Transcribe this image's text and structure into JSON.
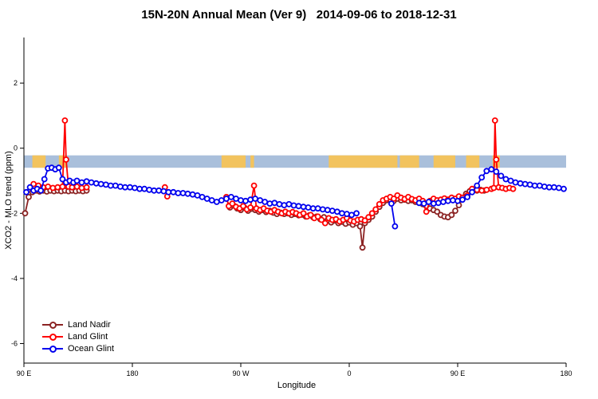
{
  "title": "15N-20N Annual Mean (Ver 9)   2014-09-06 to 2018-12-31",
  "chart_data": {
    "type": "line",
    "title": "15N-20N Annual Mean (Ver 9)   2014-09-06 to 2018-12-31",
    "xlabel": "Longitude",
    "ylabel": "XCO2 - MLO trend (ppm)",
    "grid": false,
    "legend_position": "bottom-left",
    "x_axis": {
      "range": [
        0,
        450
      ],
      "ticks": [
        0,
        90,
        180,
        270,
        360,
        450
      ],
      "labels": [
        "90 E",
        "180",
        "90 W",
        "0",
        "90 E",
        "180"
      ],
      "note": "x is degrees eastward from 90E along the displayed axis; longitude wraps 90E-180-90W-0-90E-180"
    },
    "y_axis": {
      "range": [
        -6.6,
        3.4
      ],
      "ticks": [
        2,
        0,
        -2,
        -4,
        -6
      ],
      "labels": [
        "2",
        "0",
        "-2",
        "-4",
        "-6"
      ]
    },
    "map_band": {
      "description": "land/ocean strip for 15N-20N latitude band",
      "ocean_color": "#a9bfdb",
      "land_color": "#f2c35e",
      "y_range": [
        -0.22,
        -0.6
      ],
      "land_segments": [
        [
          7,
          18
        ],
        [
          29,
          35
        ],
        [
          164,
          184
        ],
        [
          188,
          191
        ],
        [
          253,
          310
        ],
        [
          312,
          328
        ],
        [
          340,
          358
        ],
        [
          367,
          378
        ],
        [
          389,
          395
        ]
      ]
    },
    "series": [
      {
        "name": "Land Nadir",
        "color": "#8b2323",
        "points": [
          [
            1,
            -2.0
          ],
          [
            4,
            -1.5
          ],
          [
            7,
            -1.35
          ],
          [
            10,
            -1.3
          ],
          [
            13,
            -1.33
          ],
          [
            16,
            -1.3
          ],
          [
            19,
            -1.33
          ],
          [
            22,
            -1.3
          ],
          [
            25,
            -1.32
          ],
          [
            28,
            -1.3
          ],
          [
            31,
            -1.32
          ],
          [
            34,
            -1.3
          ],
          [
            37,
            -1.32
          ],
          [
            40,
            -1.3
          ],
          [
            43,
            -1.32
          ],
          [
            46,
            -1.3
          ],
          [
            49,
            -1.32
          ],
          [
            52,
            -1.3
          ],
          [
            168,
            -1.55
          ],
          [
            171,
            -1.82
          ],
          [
            174,
            -1.76
          ],
          [
            177,
            -1.85
          ],
          [
            180,
            -1.9
          ],
          [
            183,
            -1.82
          ],
          [
            186,
            -1.92
          ],
          [
            189,
            -1.86
          ],
          [
            192,
            -1.9
          ],
          [
            195,
            -1.95
          ],
          [
            198,
            -1.9
          ],
          [
            201,
            -1.96
          ],
          [
            204,
            -1.92
          ],
          [
            207,
            -1.98
          ],
          [
            210,
            -2.02
          ],
          [
            213,
            -1.98
          ],
          [
            216,
            -2.02
          ],
          [
            219,
            -2.0
          ],
          [
            222,
            -2.05
          ],
          [
            225,
            -2.02
          ],
          [
            228,
            -2.06
          ],
          [
            231,
            -2.04
          ],
          [
            234,
            -2.1
          ],
          [
            237,
            -2.06
          ],
          [
            240,
            -2.12
          ],
          [
            243,
            -2.1
          ],
          [
            246,
            -2.18
          ],
          [
            249,
            -2.12
          ],
          [
            252,
            -2.22
          ],
          [
            255,
            -2.28
          ],
          [
            258,
            -2.22
          ],
          [
            261,
            -2.3
          ],
          [
            264,
            -2.26
          ],
          [
            267,
            -2.32
          ],
          [
            270,
            -2.28
          ],
          [
            273,
            -2.35
          ],
          [
            276,
            -2.3
          ],
          [
            279,
            -2.4
          ],
          [
            281,
            -3.05
          ],
          [
            283,
            -2.3
          ],
          [
            286,
            -2.2
          ],
          [
            289,
            -2.1
          ],
          [
            292,
            -1.95
          ],
          [
            295,
            -1.8
          ],
          [
            298,
            -1.68
          ],
          [
            301,
            -1.6
          ],
          [
            304,
            -1.58
          ],
          [
            307,
            -1.62
          ],
          [
            310,
            -1.55
          ],
          [
            313,
            -1.6
          ],
          [
            316,
            -1.58
          ],
          [
            319,
            -1.62
          ],
          [
            322,
            -1.6
          ],
          [
            325,
            -1.65
          ],
          [
            328,
            -1.68
          ],
          [
            331,
            -1.72
          ],
          [
            334,
            -1.78
          ],
          [
            337,
            -1.85
          ],
          [
            340,
            -1.9
          ],
          [
            343,
            -1.95
          ],
          [
            346,
            -2.05
          ],
          [
            349,
            -2.1
          ],
          [
            352,
            -2.12
          ],
          [
            355,
            -2.05
          ],
          [
            358,
            -1.92
          ],
          [
            361,
            -1.75
          ],
          [
            364,
            -1.55
          ],
          [
            367,
            -1.4
          ],
          [
            370,
            -1.32
          ],
          [
            373,
            -1.28
          ],
          [
            376,
            -1.3
          ],
          [
            379,
            -1.28
          ],
          [
            382,
            -1.3
          ]
        ]
      },
      {
        "name": "Land Glint",
        "color": "#ff0000",
        "points": [
          [
            8,
            -1.1
          ],
          [
            12,
            -1.15
          ],
          [
            16,
            -1.2
          ],
          [
            20,
            -1.18
          ],
          [
            24,
            -1.22
          ],
          [
            28,
            -1.2
          ],
          [
            32,
            -1.18
          ],
          [
            34,
            0.85
          ],
          [
            35,
            -0.35
          ],
          [
            37,
            -1.18
          ],
          [
            40,
            -1.2
          ],
          [
            44,
            -1.18
          ],
          [
            48,
            -1.22
          ],
          [
            52,
            -1.2
          ],
          [
            117,
            -1.2
          ],
          [
            119,
            -1.48
          ],
          [
            168,
            -1.5
          ],
          [
            170,
            -1.78
          ],
          [
            173,
            -1.7
          ],
          [
            176,
            -1.8
          ],
          [
            179,
            -1.85
          ],
          [
            182,
            -1.78
          ],
          [
            185,
            -1.88
          ],
          [
            188,
            -1.82
          ],
          [
            191,
            -1.15
          ],
          [
            193,
            -1.85
          ],
          [
            196,
            -1.9
          ],
          [
            199,
            -1.85
          ],
          [
            202,
            -1.92
          ],
          [
            205,
            -1.95
          ],
          [
            208,
            -1.9
          ],
          [
            211,
            -1.95
          ],
          [
            214,
            -2.0
          ],
          [
            217,
            -1.95
          ],
          [
            220,
            -2.0
          ],
          [
            223,
            -1.96
          ],
          [
            226,
            -2.0
          ],
          [
            229,
            -2.05
          ],
          [
            232,
            -2.0
          ],
          [
            235,
            -2.1
          ],
          [
            238,
            -2.05
          ],
          [
            241,
            -2.15
          ],
          [
            244,
            -2.1
          ],
          [
            247,
            -2.2
          ],
          [
            250,
            -2.3
          ],
          [
            253,
            -2.15
          ],
          [
            256,
            -2.2
          ],
          [
            259,
            -2.18
          ],
          [
            262,
            -2.25
          ],
          [
            265,
            -2.2
          ],
          [
            268,
            -2.15
          ],
          [
            271,
            -2.22
          ],
          [
            274,
            -2.25
          ],
          [
            277,
            -2.2
          ],
          [
            280,
            -2.18
          ],
          [
            283,
            -2.22
          ],
          [
            286,
            -2.12
          ],
          [
            289,
            -2.0
          ],
          [
            292,
            -1.88
          ],
          [
            295,
            -1.72
          ],
          [
            298,
            -1.6
          ],
          [
            301,
            -1.55
          ],
          [
            304,
            -1.5
          ],
          [
            307,
            -1.55
          ],
          [
            310,
            -1.45
          ],
          [
            313,
            -1.52
          ],
          [
            316,
            -1.56
          ],
          [
            319,
            -1.5
          ],
          [
            322,
            -1.56
          ],
          [
            325,
            -1.6
          ],
          [
            328,
            -1.55
          ],
          [
            331,
            -1.62
          ],
          [
            334,
            -1.95
          ],
          [
            337,
            -1.62
          ],
          [
            340,
            -1.55
          ],
          [
            343,
            -1.6
          ],
          [
            346,
            -1.58
          ],
          [
            349,
            -1.54
          ],
          [
            352,
            -1.58
          ],
          [
            355,
            -1.52
          ],
          [
            358,
            -1.55
          ],
          [
            361,
            -1.48
          ],
          [
            364,
            -1.52
          ],
          [
            368,
            -1.45
          ],
          [
            372,
            -1.25
          ],
          [
            376,
            -1.28
          ],
          [
            380,
            -1.3
          ],
          [
            384,
            -1.28
          ],
          [
            388,
            -1.25
          ],
          [
            390,
            -1.22
          ],
          [
            391,
            0.85
          ],
          [
            392,
            -0.35
          ],
          [
            394,
            -1.2
          ],
          [
            397,
            -1.22
          ],
          [
            400,
            -1.25
          ],
          [
            403,
            -1.22
          ],
          [
            406,
            -1.25
          ]
        ]
      },
      {
        "name": "Ocean Glint",
        "color": "#0000ee",
        "points": [
          [
            2,
            -1.35
          ],
          [
            5,
            -1.2
          ],
          [
            8,
            -1.3
          ],
          [
            11,
            -1.25
          ],
          [
            14,
            -1.3
          ],
          [
            17,
            -0.95
          ],
          [
            20,
            -0.62
          ],
          [
            23,
            -0.6
          ],
          [
            26,
            -0.65
          ],
          [
            29,
            -0.6
          ],
          [
            32,
            -0.95
          ],
          [
            35,
            -1.05
          ],
          [
            38,
            -1.0
          ],
          [
            41,
            -1.05
          ],
          [
            44,
            -1.0
          ],
          [
            48,
            -1.05
          ],
          [
            52,
            -1.02
          ],
          [
            56,
            -1.05
          ],
          [
            60,
            -1.08
          ],
          [
            64,
            -1.1
          ],
          [
            68,
            -1.12
          ],
          [
            72,
            -1.15
          ],
          [
            76,
            -1.15
          ],
          [
            80,
            -1.18
          ],
          [
            84,
            -1.2
          ],
          [
            88,
            -1.2
          ],
          [
            92,
            -1.22
          ],
          [
            96,
            -1.25
          ],
          [
            100,
            -1.25
          ],
          [
            104,
            -1.28
          ],
          [
            108,
            -1.3
          ],
          [
            112,
            -1.3
          ],
          [
            116,
            -1.32
          ],
          [
            120,
            -1.35
          ],
          [
            124,
            -1.35
          ],
          [
            128,
            -1.38
          ],
          [
            132,
            -1.38
          ],
          [
            136,
            -1.4
          ],
          [
            140,
            -1.42
          ],
          [
            144,
            -1.45
          ],
          [
            148,
            -1.5
          ],
          [
            152,
            -1.55
          ],
          [
            156,
            -1.6
          ],
          [
            160,
            -1.65
          ],
          [
            164,
            -1.6
          ],
          [
            168,
            -1.55
          ],
          [
            172,
            -1.5
          ],
          [
            176,
            -1.55
          ],
          [
            180,
            -1.6
          ],
          [
            184,
            -1.62
          ],
          [
            188,
            -1.58
          ],
          [
            192,
            -1.55
          ],
          [
            196,
            -1.6
          ],
          [
            200,
            -1.65
          ],
          [
            204,
            -1.7
          ],
          [
            208,
            -1.68
          ],
          [
            212,
            -1.72
          ],
          [
            216,
            -1.75
          ],
          [
            220,
            -1.72
          ],
          [
            224,
            -1.76
          ],
          [
            228,
            -1.78
          ],
          [
            232,
            -1.8
          ],
          [
            236,
            -1.82
          ],
          [
            240,
            -1.85
          ],
          [
            244,
            -1.85
          ],
          [
            248,
            -1.88
          ],
          [
            252,
            -1.9
          ],
          [
            256,
            -1.92
          ],
          [
            260,
            -1.95
          ],
          [
            264,
            -2.0
          ],
          [
            268,
            -2.02
          ],
          [
            272,
            -2.05
          ],
          [
            276,
            -2.0
          ],
          [
            305,
            -1.7
          ],
          [
            308,
            -2.4
          ],
          [
            328,
            -1.68
          ],
          [
            332,
            -1.7
          ],
          [
            336,
            -1.65
          ],
          [
            340,
            -1.7
          ],
          [
            344,
            -1.68
          ],
          [
            348,
            -1.65
          ],
          [
            352,
            -1.62
          ],
          [
            356,
            -1.6
          ],
          [
            360,
            -1.62
          ],
          [
            364,
            -1.58
          ],
          [
            368,
            -1.5
          ],
          [
            372,
            -1.35
          ],
          [
            376,
            -1.15
          ],
          [
            380,
            -0.9
          ],
          [
            384,
            -0.7
          ],
          [
            388,
            -0.65
          ],
          [
            392,
            -0.72
          ],
          [
            396,
            -0.85
          ],
          [
            400,
            -0.95
          ],
          [
            404,
            -1.0
          ],
          [
            408,
            -1.05
          ],
          [
            412,
            -1.08
          ],
          [
            416,
            -1.1
          ],
          [
            420,
            -1.12
          ],
          [
            424,
            -1.15
          ],
          [
            428,
            -1.15
          ],
          [
            432,
            -1.18
          ],
          [
            436,
            -1.2
          ],
          [
            440,
            -1.2
          ],
          [
            444,
            -1.22
          ],
          [
            448,
            -1.25
          ]
        ]
      }
    ]
  }
}
